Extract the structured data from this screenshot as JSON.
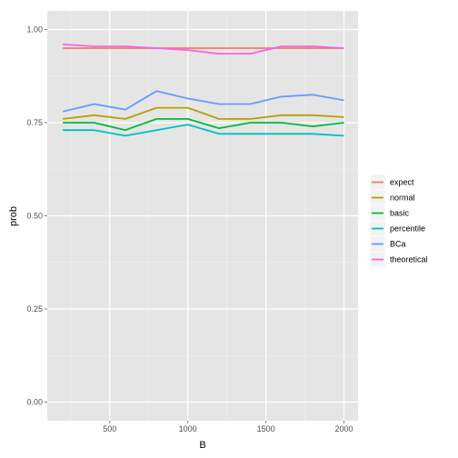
{
  "chart_data": {
    "type": "line",
    "xlabel": "B",
    "ylabel": "prob",
    "xlim": [
      100,
      2090
    ],
    "ylim": [
      -0.05,
      1.05
    ],
    "x_ticks": [
      500,
      1000,
      1500,
      2000
    ],
    "x_tick_labels": [
      "500",
      "1000",
      "1500",
      "2000"
    ],
    "y_ticks": [
      0,
      0.25,
      0.5,
      0.75,
      1
    ],
    "y_tick_labels": [
      "0.00",
      "0.25",
      "0.50",
      "0.75",
      "1.00"
    ],
    "grid": true,
    "legend_position": "right",
    "x": [
      200,
      400,
      600,
      800,
      1000,
      1200,
      1400,
      1600,
      1800,
      2000
    ],
    "series": [
      {
        "name": "expect",
        "color": "#F8766D",
        "values": [
          0.95,
          0.95,
          0.95,
          0.95,
          0.95,
          0.95,
          0.95,
          0.95,
          0.95,
          0.95
        ]
      },
      {
        "name": "normal",
        "color": "#B79F00",
        "values": [
          0.76,
          0.77,
          0.76,
          0.79,
          0.79,
          0.76,
          0.76,
          0.77,
          0.77,
          0.765
        ]
      },
      {
        "name": "basic",
        "color": "#00BA38",
        "values": [
          0.75,
          0.75,
          0.73,
          0.76,
          0.76,
          0.735,
          0.75,
          0.75,
          0.74,
          0.75
        ]
      },
      {
        "name": "percentile",
        "color": "#00BFC4",
        "values": [
          0.73,
          0.73,
          0.715,
          0.73,
          0.745,
          0.72,
          0.72,
          0.72,
          0.72,
          0.715
        ]
      },
      {
        "name": "BCa",
        "color": "#619CFF",
        "values": [
          0.78,
          0.8,
          0.785,
          0.835,
          0.815,
          0.8,
          0.8,
          0.82,
          0.825,
          0.81
        ]
      },
      {
        "name": "theoretical",
        "color": "#F564E3",
        "values": [
          0.96,
          0.955,
          0.955,
          0.95,
          0.945,
          0.935,
          0.935,
          0.955,
          0.955,
          0.95
        ]
      }
    ]
  }
}
